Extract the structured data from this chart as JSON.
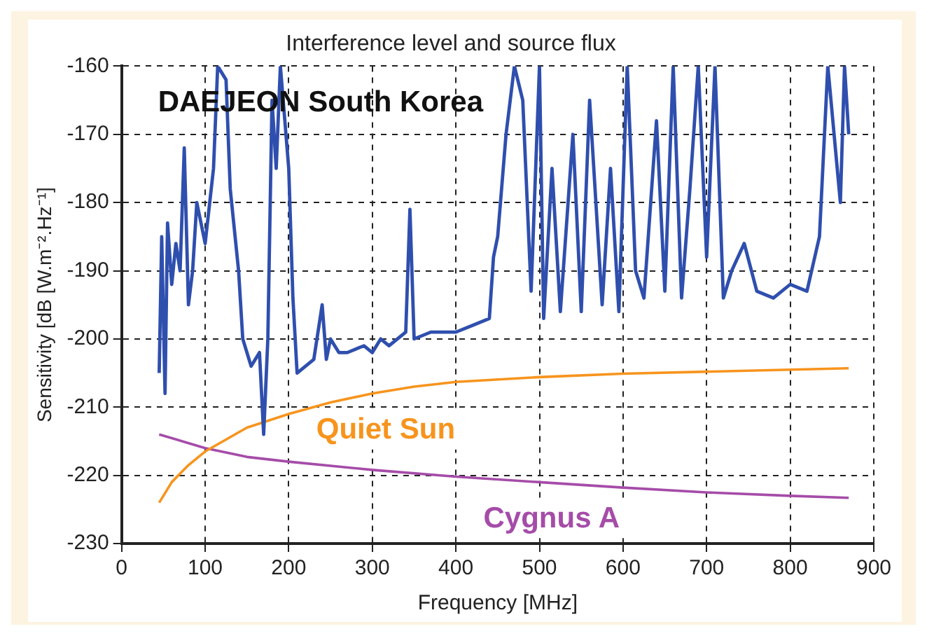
{
  "chart_data": {
    "type": "line",
    "title": "Interference level and source flux",
    "xlabel": "Frequency [MHz]",
    "ylabel": "Sensitivity [dB [W.m⁻².Hz⁻¹]",
    "annotations": [
      "DAEJEON South Korea"
    ],
    "xlim": [
      0,
      900
    ],
    "xticks": [
      0,
      100,
      200,
      300,
      400,
      500,
      600,
      700,
      800,
      900
    ],
    "ylim": [
      -230,
      -160
    ],
    "yticks": [
      -230,
      -220,
      -210,
      -200,
      -190,
      -180,
      -170,
      -160
    ],
    "grid": true,
    "legend": false,
    "marker": "none",
    "line_style": "solid",
    "series": [
      {
        "color": "#2f4fae",
        "x": [
          45,
          48,
          52,
          55,
          60,
          65,
          70,
          75,
          80,
          85,
          90,
          100,
          110,
          115,
          125,
          130,
          140,
          145,
          155,
          160,
          165,
          170,
          175,
          180,
          185,
          190,
          200,
          205,
          210,
          220,
          230,
          240,
          245,
          250,
          260,
          270,
          290,
          300,
          310,
          320,
          340,
          345,
          350,
          370,
          400,
          420,
          440,
          445,
          450,
          460,
          470,
          480,
          490,
          500,
          505,
          515,
          525,
          540,
          550,
          560,
          575,
          585,
          595,
          605,
          615,
          625,
          640,
          650,
          660,
          670,
          680,
          690,
          700,
          710,
          720,
          730,
          745,
          760,
          780,
          800,
          820,
          835,
          845,
          860,
          865,
          870
        ],
        "values": [
          -205,
          -185,
          -208,
          -183,
          -192,
          -186,
          -190,
          -172,
          -195,
          -190,
          -180,
          -186,
          -175,
          -160,
          -162,
          -178,
          -190,
          -200,
          -204,
          -203,
          -202,
          -214,
          -200,
          -165,
          -175,
          -160,
          -175,
          -194,
          -205,
          -204,
          -203,
          -195,
          -203,
          -200,
          -202,
          -202,
          -201,
          -202,
          -200,
          -201,
          -199,
          -181,
          -200,
          -199,
          -199,
          -198,
          -197,
          -188,
          -185,
          -170,
          -160,
          -165,
          -193,
          -160,
          -197,
          -175,
          -196,
          -170,
          -196,
          -165,
          -195,
          -175,
          -196,
          -160,
          -190,
          -194,
          -168,
          -193,
          -160,
          -194,
          -178,
          -160,
          -188,
          -160,
          -194,
          -190,
          -186,
          -193,
          -194,
          -192,
          -193,
          -185,
          -160,
          -180,
          -160,
          -170
        ]
      },
      {
        "name": "Quiet Sun",
        "color": "#f7941d",
        "x": [
          45,
          60,
          80,
          100,
          150,
          200,
          250,
          300,
          350,
          400,
          500,
          600,
          700,
          870
        ],
        "values": [
          -224,
          -221,
          -218.5,
          -216.5,
          -213,
          -211,
          -209.3,
          -208,
          -207,
          -206.3,
          -205.6,
          -205.1,
          -204.8,
          -204.3
        ]
      },
      {
        "name": "Cygnus A",
        "color": "#a54ca8",
        "x": [
          45,
          100,
          150,
          200,
          300,
          400,
          500,
          600,
          700,
          800,
          870
        ],
        "values": [
          -214,
          -216,
          -217.3,
          -218,
          -219.2,
          -220.2,
          -221,
          -221.8,
          -222.5,
          -223,
          -223.3
        ]
      }
    ]
  }
}
